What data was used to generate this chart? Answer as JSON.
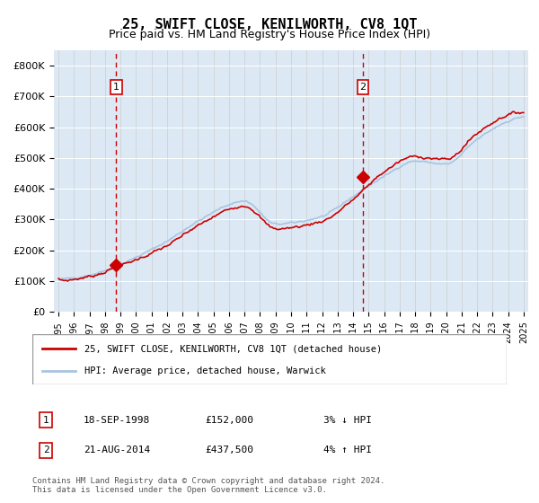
{
  "title": "25, SWIFT CLOSE, KENILWORTH, CV8 1QT",
  "subtitle": "Price paid vs. HM Land Registry's House Price Index (HPI)",
  "legend_line1": "25, SWIFT CLOSE, KENILWORTH, CV8 1QT (detached house)",
  "legend_line2": "HPI: Average price, detached house, Warwick",
  "transaction1_date": "18-SEP-1998",
  "transaction1_price": 152000,
  "transaction1_note": "3% ↓ HPI",
  "transaction2_date": "21-AUG-2014",
  "transaction2_price": 437500,
  "transaction2_note": "4% ↑ HPI",
  "footer": "Contains HM Land Registry data © Crown copyright and database right 2024.\nThis data is licensed under the Open Government Licence v3.0.",
  "hpi_line_color": "#a8c4e0",
  "price_line_color": "#cc0000",
  "bg_color": "#dce9f5",
  "plot_bg_color": "#dce9f5",
  "marker_color": "#cc0000",
  "vline_color": "#cc0000",
  "ylim": [
    0,
    850000
  ],
  "yticks": [
    0,
    100000,
    200000,
    300000,
    400000,
    500000,
    600000,
    700000,
    800000
  ],
  "ytick_labels": [
    "£0",
    "£100K",
    "£200K",
    "£300K",
    "£400K",
    "£500K",
    "£600K",
    "£700K",
    "£800K"
  ],
  "year_start": 1995,
  "year_end": 2025,
  "transaction1_year": 1998.72,
  "transaction2_year": 2014.64
}
